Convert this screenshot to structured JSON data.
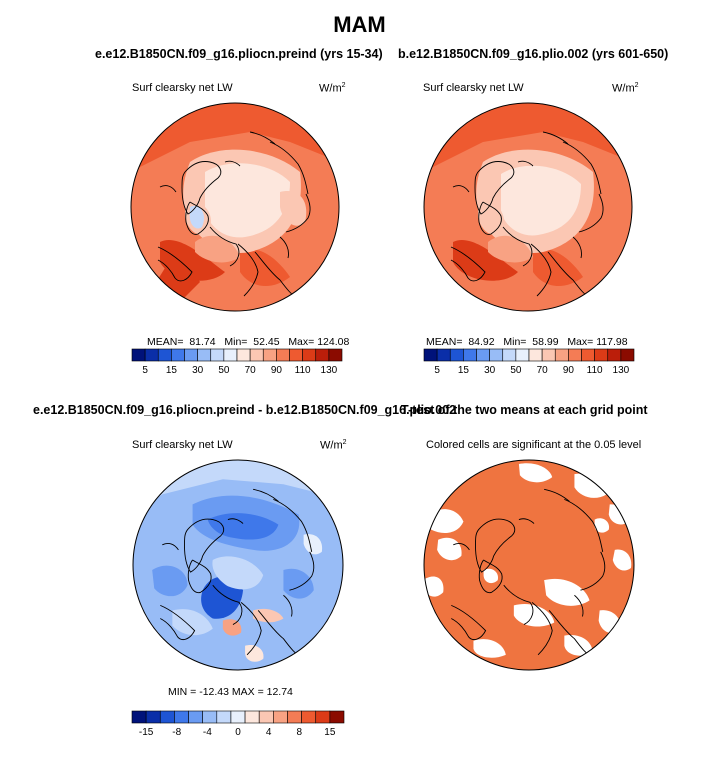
{
  "season_title": "MAM",
  "panels": [
    {
      "title": "e.e12.B1850CN.f09_g16.pliocn.preind (yrs 15-34)",
      "variable": "Surf clearsky net LW",
      "units": "W/m",
      "units_sup": "2",
      "stats": {
        "mean_label": "MEAN=",
        "mean": "81.74",
        "min_label": "Min=",
        "min": "52.45",
        "max_label": "Max=",
        "max": "124.08"
      },
      "colorbar": {
        "ticks": [
          "5",
          "15",
          "30",
          "50",
          "70",
          "90",
          "110",
          "130"
        ],
        "colors": [
          "#00127a",
          "#0a2ea8",
          "#1e55d4",
          "#3f78ea",
          "#6a9bf2",
          "#98bcf6",
          "#c4d9fa",
          "#e8f0fc",
          "#fde7dd",
          "#fbc7b3",
          "#f8a283",
          "#f47c55",
          "#ee5a30",
          "#dc3b17",
          "#bb1e0a",
          "#8b0b00"
        ]
      }
    },
    {
      "title": "b.e12.B1850CN.f09_g16.plio.002 (yrs 601-650)",
      "variable": "Surf clearsky net LW",
      "units": "W/m",
      "units_sup": "2",
      "stats": {
        "mean_label": "MEAN=",
        "mean": "84.92",
        "min_label": "Min=",
        "min": "58.99",
        "max_label": "Max=",
        "max": "117.98"
      },
      "colorbar": {
        "ticks": [
          "5",
          "15",
          "30",
          "50",
          "70",
          "90",
          "110",
          "130"
        ],
        "colors": [
          "#00127a",
          "#0a2ea8",
          "#1e55d4",
          "#3f78ea",
          "#6a9bf2",
          "#98bcf6",
          "#c4d9fa",
          "#e8f0fc",
          "#fde7dd",
          "#fbc7b3",
          "#f8a283",
          "#f47c55",
          "#ee5a30",
          "#dc3b17",
          "#bb1e0a",
          "#8b0b00"
        ]
      }
    },
    {
      "title": "e.e12.B1850CN.f09_g16.pliocn.preind - b.e12.B1850CN.f09_g16.plio.002",
      "variable": "Surf clearsky net LW",
      "units": "W/m",
      "units_sup": "2",
      "stats": {
        "text": "MIN = -12.43  MAX =  12.74"
      },
      "colorbar": {
        "ticks": [
          "-15",
          "-8",
          "-4",
          "0",
          "4",
          "8",
          "15"
        ],
        "colors": [
          "#00127a",
          "#0a2ea8",
          "#1e55d4",
          "#3f78ea",
          "#6a9bf2",
          "#98bcf6",
          "#c4d9fa",
          "#e8f0fc",
          "#fde7dd",
          "#fbc7b3",
          "#f8a283",
          "#f47c55",
          "#ee5a30",
          "#dc3b17",
          "#8b0b00"
        ]
      }
    },
    {
      "title": "T-test of the two means at each grid point",
      "variable": "Colored cells are significant at the 0.05 level",
      "significance_color": "#ef7440"
    }
  ],
  "colors": {
    "warm_light": "#fde7dd",
    "warm_mid": "#f8a283",
    "warm_strong": "#ee5a30",
    "diff_base": "#98bcf6",
    "diff_dark": "#1e55d4",
    "diff_light": "#c4d9fa",
    "coast": "#000000"
  }
}
